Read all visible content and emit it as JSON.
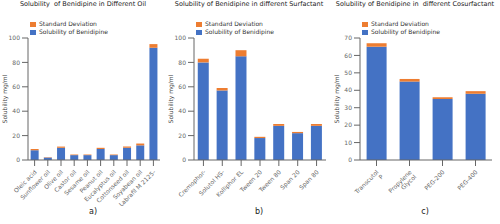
{
  "chart_data": [
    {
      "type": "bar",
      "title": "Solubility  of Benidipine in Different Oil",
      "xlabel": "a)",
      "ylabel": "Solubility mg/ml",
      "categories": [
        "Oleic acid",
        "Sunflower oil",
        "Olive oil",
        "Castor oil",
        "Sesame oil",
        "Peanut oil",
        "Eucalyptus oil",
        "Cottonseed oil",
        "Soyabean oil",
        "Labrafil M 2125-"
      ],
      "series": [
        {
          "name": "Solubility of Benidipine",
          "color": "#4472C4",
          "values": [
            8,
            2,
            10,
            4,
            4,
            9,
            4,
            10,
            12,
            92
          ]
        },
        {
          "name": "Standard Deviation",
          "color": "#ED7D31",
          "values": [
            1,
            0.3,
            1,
            0.5,
            0.5,
            1,
            0.5,
            1,
            1.5,
            3
          ]
        }
      ],
      "stacked": true,
      "ylim": [
        0,
        100
      ],
      "yticks": [
        0,
        20,
        40,
        60,
        80,
        100
      ],
      "legend": "upper left",
      "grid": false
    },
    {
      "type": "bar",
      "title": "Solubility of Benidipine in different Surfactant",
      "xlabel": "b)",
      "ylabel": "Solubility mg/ml",
      "categories": [
        "Cremophor-",
        "Solutol HS-",
        "Kolliphor EL",
        "Tween 20",
        "Tween 80",
        "Span 20",
        "Span 80"
      ],
      "series": [
        {
          "name": "Solubility of Benidipine",
          "color": "#4472C4",
          "values": [
            80,
            57,
            85,
            18,
            28,
            22,
            28
          ]
        },
        {
          "name": "Standard Deviation",
          "color": "#ED7D31",
          "values": [
            3,
            2,
            5,
            1,
            1.5,
            1,
            1.5
          ]
        }
      ],
      "stacked": true,
      "ylim": [
        0,
        100
      ],
      "yticks": [
        0,
        20,
        40,
        60,
        80,
        100
      ],
      "legend": "upper left",
      "grid": false
    },
    {
      "type": "bar",
      "title": "Solubility of Benidipine in  different Cosurfactant",
      "xlabel": "c)",
      "ylabel": "Solubility mg/ml",
      "categories": [
        "Transcutol\nP",
        "Propylene\nGlycol",
        "PEG-200",
        "PEG-400"
      ],
      "series": [
        {
          "name": "Solubility of Benidipine",
          "color": "#4472C4",
          "values": [
            65,
            45,
            35,
            38
          ]
        },
        {
          "name": "Standard Deviation",
          "color": "#ED7D31",
          "values": [
            2,
            1.5,
            1,
            1.5
          ]
        }
      ],
      "stacked": true,
      "ylim": [
        0,
        70
      ],
      "yticks": [
        0,
        10,
        20,
        30,
        40,
        50,
        60,
        70
      ],
      "legend": "upper left",
      "grid": false
    }
  ]
}
